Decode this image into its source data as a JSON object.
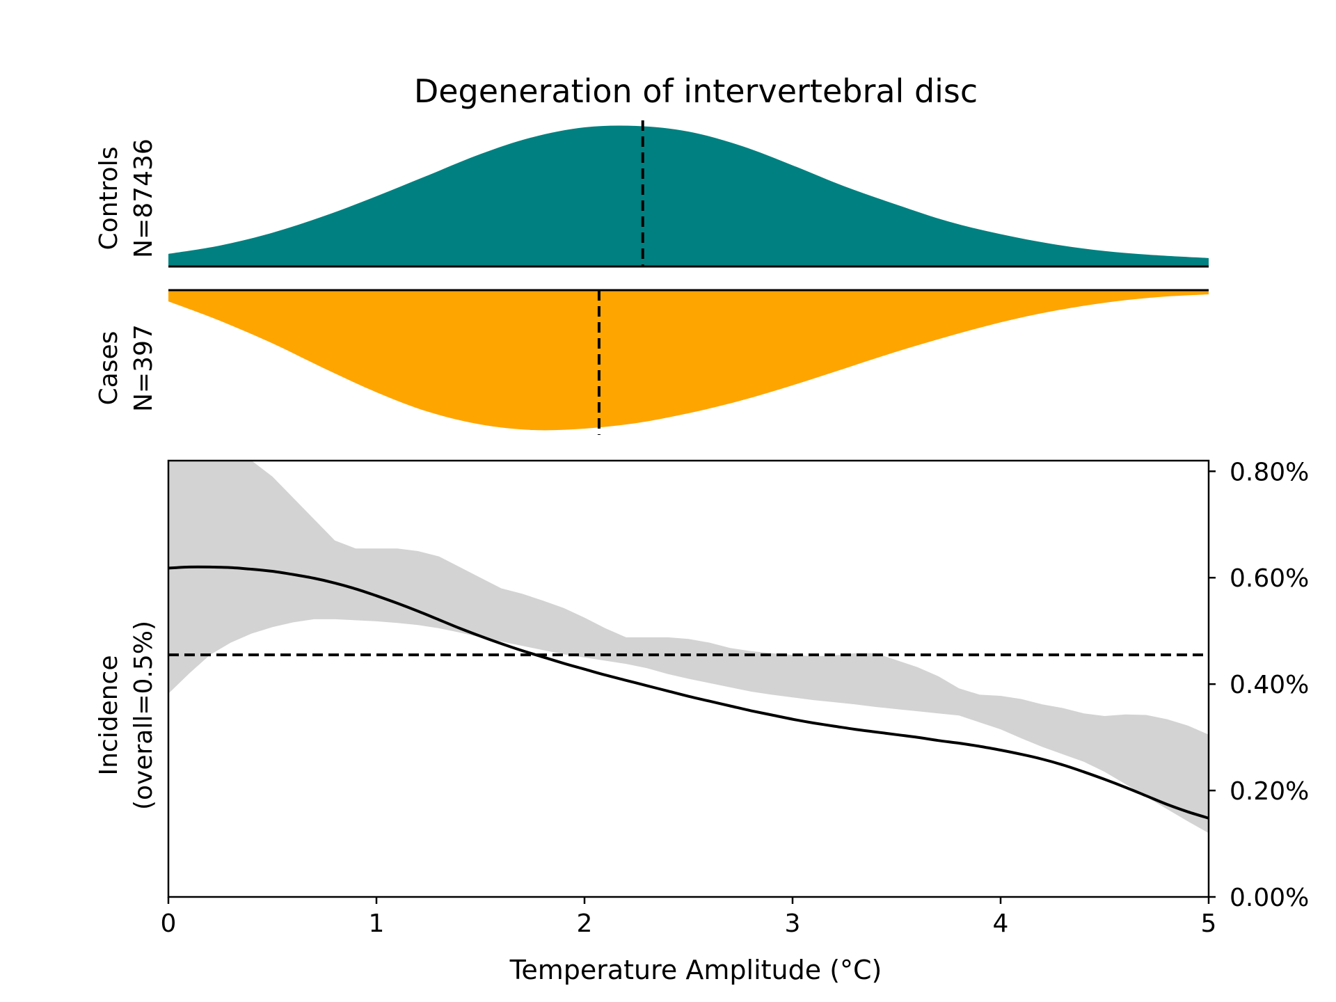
{
  "chart_data": {
    "type": "area",
    "title": "Degeneration of intervertebral disc",
    "xlabel": "Temperature Amplitude (°C)",
    "xlim": [
      0,
      5
    ],
    "x_ticks": [
      0,
      1,
      2,
      3,
      4,
      5
    ],
    "x_tick_labels": [
      "0",
      "1",
      "2",
      "3",
      "4",
      "5"
    ],
    "controls": {
      "label_line1": "Controls",
      "label_line2": "N=87436",
      "color": "#008080",
      "mean_marker_x": 2.28,
      "density_shape": "relative curve height (0-1)",
      "x": [
        0,
        0.25,
        0.5,
        0.75,
        1.0,
        1.25,
        1.5,
        1.75,
        2.0,
        2.25,
        2.5,
        2.75,
        3.0,
        3.25,
        3.5,
        3.75,
        4.0,
        4.25,
        4.5,
        4.75,
        5.0
      ],
      "density": [
        0.09,
        0.15,
        0.24,
        0.36,
        0.5,
        0.65,
        0.8,
        0.92,
        0.99,
        1.0,
        0.96,
        0.86,
        0.72,
        0.57,
        0.44,
        0.32,
        0.23,
        0.16,
        0.11,
        0.08,
        0.06
      ]
    },
    "cases": {
      "label_line1": "Cases",
      "label_line2": "N=397",
      "color": "#FFA500",
      "mean_marker_x": 2.07,
      "density_shape": "relative curve height (0-1)",
      "x": [
        0,
        0.25,
        0.5,
        0.75,
        1.0,
        1.25,
        1.5,
        1.75,
        2.0,
        2.25,
        2.5,
        2.75,
        3.0,
        3.25,
        3.5,
        3.75,
        4.0,
        4.25,
        4.5,
        4.75,
        5.0
      ],
      "density": [
        0.08,
        0.22,
        0.38,
        0.56,
        0.73,
        0.87,
        0.96,
        1.0,
        0.99,
        0.95,
        0.88,
        0.79,
        0.68,
        0.56,
        0.44,
        0.33,
        0.23,
        0.15,
        0.09,
        0.05,
        0.03
      ]
    },
    "incidence": {
      "ylabel_line1": "Incidence",
      "ylabel_line2": "(overall=0.5%)",
      "ylim": [
        0,
        0.0082
      ],
      "y_ticks": [
        0,
        0.002,
        0.004,
        0.006,
        0.008
      ],
      "y_tick_labels": [
        "0.00%",
        "0.20%",
        "0.40%",
        "0.60%",
        "0.80%"
      ],
      "y_axis_side": "right",
      "overall_line_y": 0.00455,
      "line_color": "#000000",
      "band_color": "#d3d3d3",
      "x": [
        0,
        0.1,
        0.2,
        0.3,
        0.4,
        0.5,
        0.6,
        0.7,
        0.8,
        0.9,
        1.0,
        1.1,
        1.2,
        1.3,
        1.4,
        1.5,
        1.6,
        1.7,
        1.8,
        1.9,
        2.0,
        2.1,
        2.2,
        2.3,
        2.4,
        2.5,
        2.6,
        2.7,
        2.8,
        2.9,
        3.0,
        3.1,
        3.2,
        3.3,
        3.4,
        3.5,
        3.6,
        3.7,
        3.8,
        3.9,
        4.0,
        4.1,
        4.2,
        4.3,
        4.4,
        4.5,
        4.6,
        4.7,
        4.8,
        4.9,
        5.0
      ],
      "estimate": [
        0.00618,
        0.0062,
        0.0062,
        0.00619,
        0.00616,
        0.00612,
        0.00606,
        0.00599,
        0.0059,
        0.00579,
        0.00566,
        0.00552,
        0.00537,
        0.00521,
        0.00505,
        0.0049,
        0.00476,
        0.00463,
        0.00451,
        0.00439,
        0.00428,
        0.00417,
        0.00407,
        0.00397,
        0.00387,
        0.00377,
        0.00368,
        0.00359,
        0.0035,
        0.00342,
        0.00334,
        0.00327,
        0.00321,
        0.00315,
        0.0031,
        0.00305,
        0.003,
        0.00294,
        0.00289,
        0.00283,
        0.00276,
        0.00268,
        0.00259,
        0.00248,
        0.00235,
        0.00221,
        0.00206,
        0.0019,
        0.00174,
        0.0016,
        0.00148
      ],
      "lower": [
        0.00382,
        0.0042,
        0.00455,
        0.00478,
        0.00495,
        0.00507,
        0.00516,
        0.00522,
        0.00522,
        0.0052,
        0.00518,
        0.00515,
        0.00511,
        0.00505,
        0.00497,
        0.00488,
        0.0048,
        0.00472,
        0.00464,
        0.00456,
        0.0045,
        0.00444,
        0.00438,
        0.0043,
        0.00419,
        0.0041,
        0.00402,
        0.00394,
        0.00386,
        0.0038,
        0.00375,
        0.0037,
        0.00366,
        0.00362,
        0.00357,
        0.00353,
        0.00349,
        0.00345,
        0.00341,
        0.00328,
        0.00315,
        0.00298,
        0.00282,
        0.00268,
        0.00254,
        0.00235,
        0.00212,
        0.00188,
        0.00165,
        0.00142,
        0.0012
      ],
      "upper": [
        0.0082,
        0.0082,
        0.0082,
        0.0082,
        0.0082,
        0.0079,
        0.0075,
        0.0071,
        0.0067,
        0.00655,
        0.00655,
        0.00655,
        0.0065,
        0.0064,
        0.0062,
        0.006,
        0.0058,
        0.0057,
        0.00557,
        0.00543,
        0.00525,
        0.00505,
        0.00488,
        0.00488,
        0.00488,
        0.00485,
        0.00478,
        0.00468,
        0.00462,
        0.00458,
        0.00455,
        0.00452,
        0.00454,
        0.00458,
        0.00458,
        0.00445,
        0.00432,
        0.00415,
        0.00392,
        0.0038,
        0.00378,
        0.00372,
        0.00362,
        0.00355,
        0.00345,
        0.0034,
        0.00343,
        0.00342,
        0.00334,
        0.00322,
        0.00305
      ]
    }
  }
}
